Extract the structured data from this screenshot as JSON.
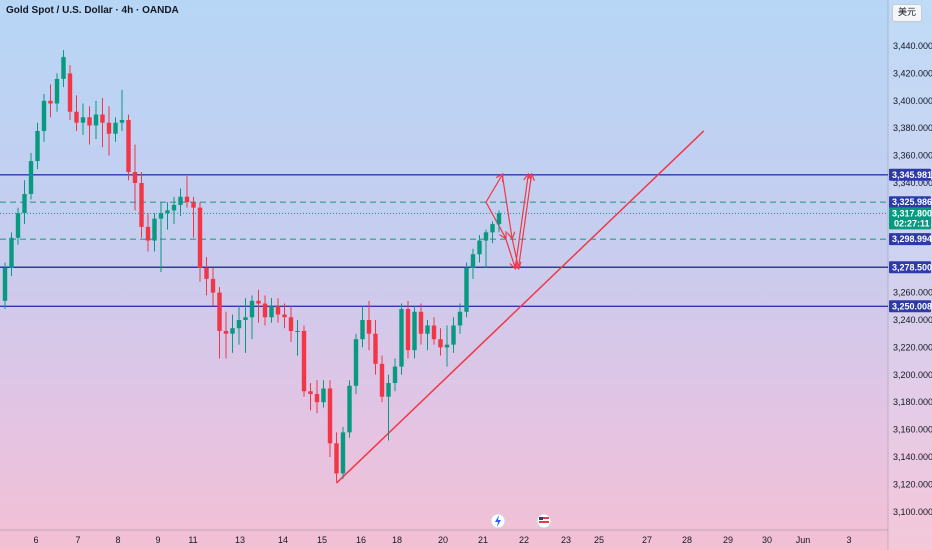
{
  "header": {
    "title": "Gold Spot / U.S. Dollar · 4h · OANDA",
    "currency_label": "美元"
  },
  "colors": {
    "up": "#089981",
    "down": "#f23645",
    "level_line": "#2d3aa8",
    "dashed_line": "#2e9b8c",
    "trend_line": "#f23645"
  },
  "chart_data": {
    "type": "candlestick",
    "title": "Gold Spot / U.S. Dollar · 4h · OANDA",
    "ylim": [
      3095,
      3460
    ],
    "y_ticks": [
      "3,100.000",
      "3,120.000",
      "3,140.000",
      "3,160.000",
      "3,180.000",
      "3,200.000",
      "3,220.000",
      "3,240.000",
      "3,260.000",
      "3,340.000",
      "3,360.000",
      "3,380.000",
      "3,400.000",
      "3,420.000",
      "3,440.000"
    ],
    "x_ticks": [
      "6",
      "7",
      "8",
      "9",
      "11",
      "13",
      "14",
      "15",
      "16",
      "18",
      "20",
      "21",
      "22",
      "23",
      "25",
      "27",
      "28",
      "29",
      "30",
      "Jun",
      "3"
    ],
    "candles": [
      {
        "o": 3254,
        "h": 3282,
        "l": 3248,
        "c": 3278
      },
      {
        "o": 3278,
        "h": 3304,
        "l": 3272,
        "c": 3300
      },
      {
        "o": 3300,
        "h": 3322,
        "l": 3295,
        "c": 3318
      },
      {
        "o": 3318,
        "h": 3342,
        "l": 3310,
        "c": 3332
      },
      {
        "o": 3332,
        "h": 3362,
        "l": 3328,
        "c": 3356
      },
      {
        "o": 3356,
        "h": 3384,
        "l": 3350,
        "c": 3378
      },
      {
        "o": 3378,
        "h": 3405,
        "l": 3370,
        "c": 3400
      },
      {
        "o": 3400,
        "h": 3412,
        "l": 3388,
        "c": 3398
      },
      {
        "o": 3398,
        "h": 3420,
        "l": 3392,
        "c": 3416
      },
      {
        "o": 3416,
        "h": 3437,
        "l": 3410,
        "c": 3432
      },
      {
        "o": 3420,
        "h": 3426,
        "l": 3386,
        "c": 3392
      },
      {
        "o": 3392,
        "h": 3404,
        "l": 3378,
        "c": 3384
      },
      {
        "o": 3384,
        "h": 3398,
        "l": 3375,
        "c": 3388
      },
      {
        "o": 3388,
        "h": 3396,
        "l": 3368,
        "c": 3382
      },
      {
        "o": 3382,
        "h": 3400,
        "l": 3372,
        "c": 3390
      },
      {
        "o": 3390,
        "h": 3402,
        "l": 3366,
        "c": 3384
      },
      {
        "o": 3384,
        "h": 3396,
        "l": 3360,
        "c": 3376
      },
      {
        "o": 3376,
        "h": 3388,
        "l": 3370,
        "c": 3384
      },
      {
        "o": 3384,
        "h": 3408,
        "l": 3378,
        "c": 3386
      },
      {
        "o": 3386,
        "h": 3390,
        "l": 3342,
        "c": 3348
      },
      {
        "o": 3348,
        "h": 3368,
        "l": 3320,
        "c": 3340
      },
      {
        "o": 3340,
        "h": 3348,
        "l": 3300,
        "c": 3308
      },
      {
        "o": 3308,
        "h": 3318,
        "l": 3290,
        "c": 3298
      },
      {
        "o": 3298,
        "h": 3318,
        "l": 3290,
        "c": 3314
      },
      {
        "o": 3314,
        "h": 3326,
        "l": 3275,
        "c": 3318
      },
      {
        "o": 3318,
        "h": 3326,
        "l": 3306,
        "c": 3320
      },
      {
        "o": 3320,
        "h": 3330,
        "l": 3310,
        "c": 3324
      },
      {
        "o": 3324,
        "h": 3336,
        "l": 3316,
        "c": 3330
      },
      {
        "o": 3330,
        "h": 3345,
        "l": 3322,
        "c": 3326
      },
      {
        "o": 3326,
        "h": 3330,
        "l": 3300,
        "c": 3322
      },
      {
        "o": 3322,
        "h": 3326,
        "l": 3268,
        "c": 3278
      },
      {
        "o": 3278,
        "h": 3286,
        "l": 3258,
        "c": 3270
      },
      {
        "o": 3270,
        "h": 3278,
        "l": 3250,
        "c": 3260
      },
      {
        "o": 3260,
        "h": 3264,
        "l": 3212,
        "c": 3232
      },
      {
        "o": 3232,
        "h": 3246,
        "l": 3212,
        "c": 3230
      },
      {
        "o": 3230,
        "h": 3244,
        "l": 3216,
        "c": 3234
      },
      {
        "o": 3234,
        "h": 3250,
        "l": 3222,
        "c": 3240
      },
      {
        "o": 3240,
        "h": 3256,
        "l": 3216,
        "c": 3242
      },
      {
        "o": 3242,
        "h": 3258,
        "l": 3226,
        "c": 3254
      },
      {
        "o": 3254,
        "h": 3262,
        "l": 3238,
        "c": 3252
      },
      {
        "o": 3252,
        "h": 3258,
        "l": 3236,
        "c": 3242
      },
      {
        "o": 3242,
        "h": 3256,
        "l": 3238,
        "c": 3250
      },
      {
        "o": 3250,
        "h": 3256,
        "l": 3238,
        "c": 3244
      },
      {
        "o": 3244,
        "h": 3252,
        "l": 3234,
        "c": 3242
      },
      {
        "o": 3242,
        "h": 3250,
        "l": 3224,
        "c": 3232
      },
      {
        "o": 3232,
        "h": 3240,
        "l": 3214,
        "c": 3232
      },
      {
        "o": 3232,
        "h": 3236,
        "l": 3184,
        "c": 3188
      },
      {
        "o": 3188,
        "h": 3194,
        "l": 3174,
        "c": 3186
      },
      {
        "o": 3186,
        "h": 3196,
        "l": 3172,
        "c": 3180
      },
      {
        "o": 3180,
        "h": 3196,
        "l": 3176,
        "c": 3190
      },
      {
        "o": 3190,
        "h": 3196,
        "l": 3140,
        "c": 3150
      },
      {
        "o": 3150,
        "h": 3158,
        "l": 3122,
        "c": 3128
      },
      {
        "o": 3128,
        "h": 3162,
        "l": 3124,
        "c": 3158
      },
      {
        "o": 3158,
        "h": 3196,
        "l": 3154,
        "c": 3192
      },
      {
        "o": 3192,
        "h": 3230,
        "l": 3186,
        "c": 3226
      },
      {
        "o": 3226,
        "h": 3250,
        "l": 3220,
        "c": 3240
      },
      {
        "o": 3240,
        "h": 3254,
        "l": 3218,
        "c": 3230
      },
      {
        "o": 3230,
        "h": 3240,
        "l": 3200,
        "c": 3208
      },
      {
        "o": 3208,
        "h": 3214,
        "l": 3180,
        "c": 3184
      },
      {
        "o": 3184,
        "h": 3200,
        "l": 3152,
        "c": 3194
      },
      {
        "o": 3194,
        "h": 3212,
        "l": 3188,
        "c": 3206
      },
      {
        "o": 3206,
        "h": 3252,
        "l": 3200,
        "c": 3248
      },
      {
        "o": 3248,
        "h": 3254,
        "l": 3212,
        "c": 3218
      },
      {
        "o": 3218,
        "h": 3250,
        "l": 3212,
        "c": 3246
      },
      {
        "o": 3246,
        "h": 3252,
        "l": 3222,
        "c": 3230
      },
      {
        "o": 3230,
        "h": 3240,
        "l": 3218,
        "c": 3236
      },
      {
        "o": 3236,
        "h": 3242,
        "l": 3222,
        "c": 3226
      },
      {
        "o": 3226,
        "h": 3234,
        "l": 3214,
        "c": 3220
      },
      {
        "o": 3220,
        "h": 3236,
        "l": 3206,
        "c": 3222
      },
      {
        "o": 3222,
        "h": 3242,
        "l": 3216,
        "c": 3236
      },
      {
        "o": 3236,
        "h": 3252,
        "l": 3230,
        "c": 3246
      },
      {
        "o": 3246,
        "h": 3282,
        "l": 3242,
        "c": 3278
      },
      {
        "o": 3278,
        "h": 3292,
        "l": 3270,
        "c": 3288
      },
      {
        "o": 3288,
        "h": 3302,
        "l": 3282,
        "c": 3298
      },
      {
        "o": 3298,
        "h": 3306,
        "l": 3278,
        "c": 3304
      },
      {
        "o": 3304,
        "h": 3312,
        "l": 3296,
        "c": 3310
      },
      {
        "o": 3310,
        "h": 3320,
        "l": 3304,
        "c": 3318
      }
    ],
    "horizontal_levels": [
      {
        "value": 3345.981,
        "label": "3,345.981",
        "style": "solid"
      },
      {
        "value": 3325.986,
        "label": "3,325.986",
        "style": "dashed"
      },
      {
        "value": 3298.994,
        "label": "3,298.994",
        "style": "dashed"
      },
      {
        "value": 3278.5,
        "label": "3,278.500",
        "style": "solid"
      },
      {
        "value": 3250.008,
        "label": "3,250.008",
        "style": "solid"
      }
    ],
    "current_price": {
      "value": 3317.8,
      "label": "3,317.800",
      "countdown": "02:27:11"
    },
    "trend_line": {
      "from": [
        51,
        3121
      ],
      "to": [
        107.5,
        3378
      ]
    },
    "projection_path_1": [
      [
        74,
        3326
      ],
      [
        77,
        3300
      ],
      [
        78.5,
        3278
      ],
      [
        80.5,
        3346
      ]
    ],
    "projection_path_2": [
      [
        74,
        3326
      ],
      [
        76.5,
        3346
      ],
      [
        78,
        3300
      ],
      [
        79,
        3278
      ],
      [
        81,
        3346
      ]
    ],
    "event_icons": [
      "lightning",
      "us-flag"
    ]
  }
}
